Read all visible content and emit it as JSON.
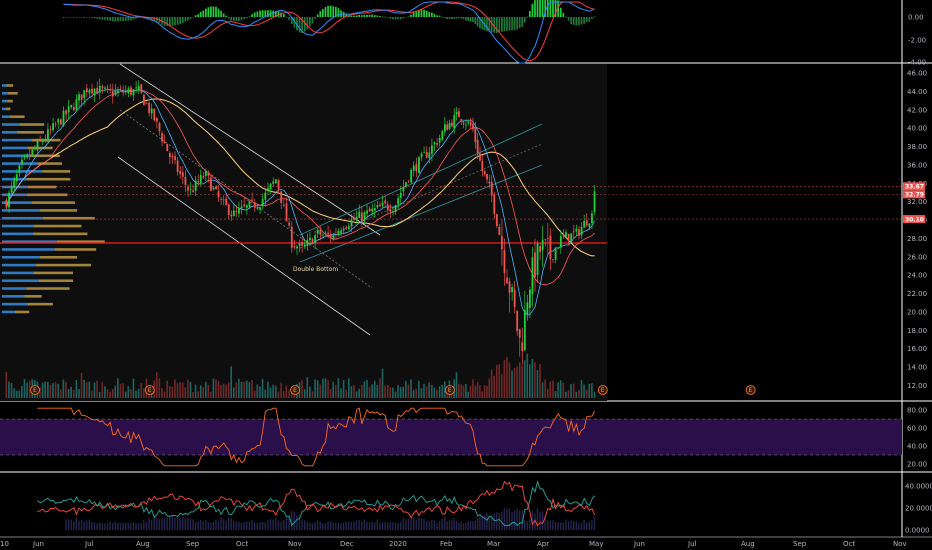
{
  "colors": {
    "background": "#000000",
    "up": "#26a69a",
    "up_bright": "#22d13a",
    "down": "#ef5350",
    "macd_line": "#2f8dff",
    "signal_line": "#ff3b3b",
    "hist_up": "#22d13a",
    "hist_down": "#1f7a3a",
    "rsi": "#ff6a1a",
    "rsi_band": "#2a0f4a",
    "vp_up": "#3ba0ff",
    "vp_down": "#c8a24a",
    "support": "#ff1a1a",
    "ma_fast": "#4fb3ff",
    "ma_mid": "#ff5a5a",
    "ma_slow": "#ffd27a"
  },
  "macd_panel": {
    "ticks": [
      "0.00",
      "-2.00",
      "-4.00"
    ]
  },
  "price_panel": {
    "ticks": [
      "46.00",
      "44.00",
      "42.00",
      "40.00",
      "38.00",
      "36.00",
      "34.00",
      "32.00",
      "30.00",
      "28.00",
      "26.00",
      "24.00",
      "22.00",
      "20.00",
      "18.00",
      "16.00",
      "14.00",
      "12.00"
    ],
    "price_tags": [
      {
        "text": "33.67",
        "value": 33.67,
        "color": "#ef5350"
      },
      {
        "text": "32.79",
        "value": 32.79,
        "color": "#ef5350"
      },
      {
        "text": "30.10",
        "value": 30.1,
        "color": "#ef5350"
      }
    ],
    "support_level": 27.5,
    "annotation": "Double Bottom",
    "earnings_marker": "E"
  },
  "rsi_panel": {
    "ticks": [
      "80.00",
      "60.00",
      "40.00",
      "20.00"
    ]
  },
  "dmi_panel": {
    "ticks": [
      "40.0000",
      "20.0000",
      "0.0000"
    ]
  },
  "time_axis": {
    "labels": [
      "10",
      "Jun",
      "Jul",
      "Aug",
      "Sep",
      "Oct",
      "Nov",
      "Dec",
      "2020",
      "Feb",
      "Mar",
      "Apr",
      "May",
      "Jun",
      "Jul",
      "Aug",
      "Sep",
      "Oct",
      "Nov"
    ]
  },
  "chart_data": {
    "type": "line",
    "x": [
      "Jun 2019",
      "Jul 2019",
      "Aug 2019",
      "Sep 2019",
      "Oct 2019",
      "Nov 2019",
      "Dec 2019",
      "Jan 2020",
      "Feb 2020",
      "Mar 2020",
      "Apr 2020",
      "May 2020"
    ],
    "series": [
      {
        "values": [
          38.0,
          44.5,
          44.0,
          33.0,
          31.0,
          27.0,
          29.5,
          31.5,
          41.5,
          16.0,
          28.0,
          33.7
        ]
      }
    ],
    "ylim": [
      12,
      46
    ],
    "grid": false,
    "legend": "none"
  }
}
